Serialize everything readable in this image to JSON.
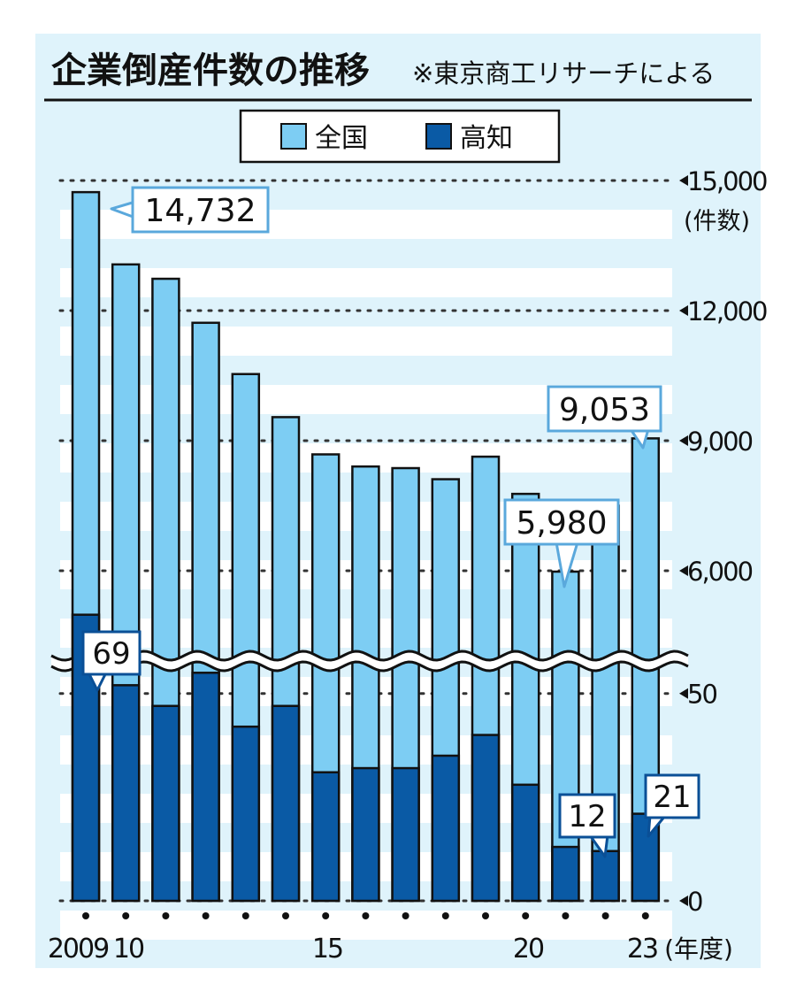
{
  "chart_data": {
    "type": "bar",
    "title": "企業倒産件数の推移",
    "source_note": "※東京商工リサーチによる",
    "x_tick_labels": [
      "2009",
      "10",
      "15",
      "20",
      "23"
    ],
    "x_unit": "(年度)",
    "categories": [
      "2009",
      "2010",
      "2011",
      "2012",
      "2013",
      "2014",
      "2015",
      "2016",
      "2017",
      "2018",
      "2019",
      "2020",
      "2021",
      "2022",
      "2023"
    ],
    "axis_upper": {
      "ticks": [
        "15,000",
        "12,000",
        "9,000",
        "6,000"
      ],
      "unit": "(件数)",
      "range": [
        5000,
        15000
      ]
    },
    "axis_lower": {
      "ticks": [
        "50",
        "0"
      ],
      "range": [
        0,
        70
      ]
    },
    "grid": true,
    "legend_position": "top",
    "axis_break": true,
    "series": [
      {
        "name": "全国",
        "color": "#7dcdf3",
        "axis": "upper",
        "values": [
          14732,
          13065,
          12734,
          11719,
          10536,
          9543,
          8684,
          8404,
          8367,
          8111,
          8631,
          7773,
          5980,
          7499,
          9053
        ]
      },
      {
        "name": "高知",
        "color": "#0a5aa5",
        "axis": "lower",
        "values": [
          69,
          52,
          47,
          55,
          42,
          47,
          31,
          32,
          32,
          35,
          40,
          28,
          13,
          12,
          21
        ]
      }
    ],
    "annotations": [
      {
        "series": "全国",
        "index": 0,
        "text": "14,732"
      },
      {
        "series": "全国",
        "index": 12,
        "text": "5,980"
      },
      {
        "series": "全国",
        "index": 14,
        "text": "9,053"
      },
      {
        "series": "高知",
        "index": 0,
        "text": "69"
      },
      {
        "series": "高知",
        "index": 13,
        "text": "12"
      },
      {
        "series": "高知",
        "index": 14,
        "text": "21"
      }
    ]
  }
}
